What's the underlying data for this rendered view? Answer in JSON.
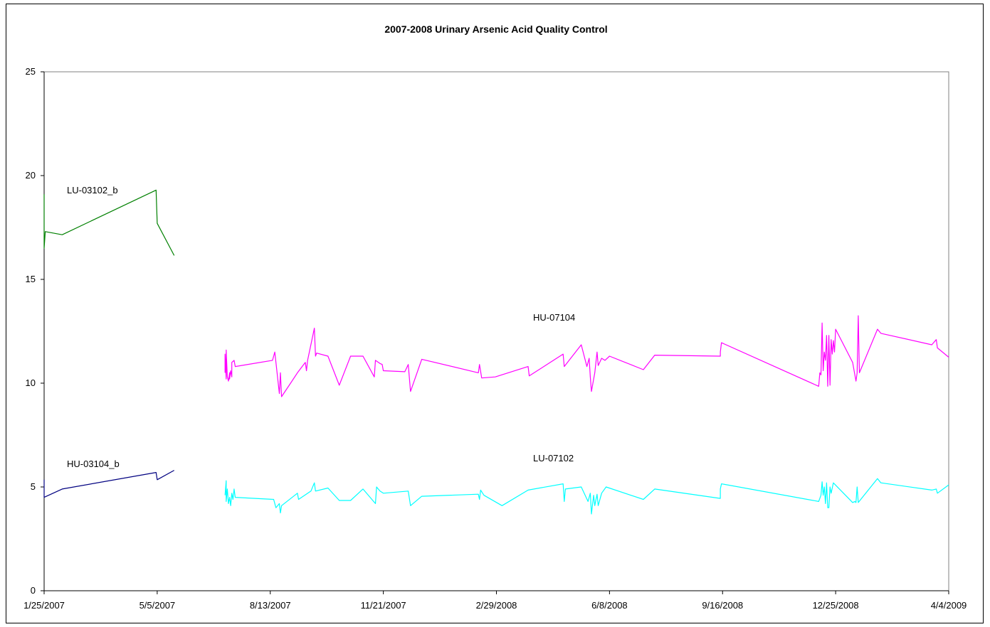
{
  "chart_data": {
    "type": "line",
    "title": "2007-2008 Urinary Arsenic Acid Quality Control",
    "xlabel": "",
    "ylabel": "",
    "ylim": [
      0,
      25
    ],
    "y_ticks": [
      "0",
      "5",
      "10",
      "15",
      "20",
      "25"
    ],
    "x_axis_type": "date",
    "xlim": [
      "2007-01-25",
      "2009-04-04"
    ],
    "x_tick_labels": [
      {
        "date": "2007-01-25",
        "label": "1/25/2007"
      },
      {
        "date": "2007-05-05",
        "label": "5/5/2007"
      },
      {
        "date": "2007-08-13",
        "label": "8/13/2007"
      },
      {
        "date": "2007-11-21",
        "label": "11/21/2007"
      },
      {
        "date": "2008-02-29",
        "label": "2/29/2008"
      },
      {
        "date": "2008-06-08",
        "label": "6/8/2008"
      },
      {
        "date": "2008-09-16",
        "label": "9/16/2008"
      },
      {
        "date": "2008-12-25",
        "label": "12/25/2008"
      },
      {
        "date": "2009-04-04",
        "label": "4/4/2009"
      }
    ],
    "grid": false,
    "legend": "none",
    "annotations": [
      {
        "text": "LU-03102_b",
        "series": 0
      },
      {
        "text": "HU-03104_b",
        "series": 1
      },
      {
        "text": "HU-07104",
        "series": 2
      },
      {
        "text": "LU-07102",
        "series": 3
      }
    ],
    "series": [
      {
        "color": "#008000",
        "points": [
          [
            "2007-01-25",
            19.1
          ],
          [
            "2007-01-25",
            16.5
          ],
          [
            "2007-01-26",
            17.3
          ],
          [
            "2007-02-10",
            17.15
          ],
          [
            "2007-05-04",
            19.3
          ],
          [
            "2007-05-05",
            17.7
          ],
          [
            "2007-05-20",
            16.15
          ]
        ]
      },
      {
        "color": "#000080",
        "points": [
          [
            "2007-01-25",
            5.35
          ],
          [
            "2007-01-25",
            4.5
          ],
          [
            "2007-02-10",
            4.9
          ],
          [
            "2007-05-04",
            5.7
          ],
          [
            "2007-05-05",
            5.35
          ],
          [
            "2007-05-20",
            5.8
          ]
        ]
      },
      {
        "color": "#ff00ff",
        "points": [
          [
            "2007-07-04",
            10.5
          ],
          [
            "2007-07-04",
            11.4
          ],
          [
            "2007-07-05",
            10.2
          ],
          [
            "2007-07-05",
            11.6
          ],
          [
            "2007-07-06",
            10.3
          ],
          [
            "2007-07-07",
            10.1
          ],
          [
            "2007-07-08",
            10.5
          ],
          [
            "2007-07-08",
            10.2
          ],
          [
            "2007-07-09",
            10.6
          ],
          [
            "2007-07-10",
            10.3
          ],
          [
            "2007-07-10",
            11.0
          ],
          [
            "2007-07-12",
            11.1
          ],
          [
            "2007-07-13",
            10.8
          ],
          [
            "2007-08-15",
            11.1
          ],
          [
            "2007-08-17",
            11.5
          ],
          [
            "2007-08-21",
            9.5
          ],
          [
            "2007-08-22",
            10.5
          ],
          [
            "2007-08-23",
            9.35
          ],
          [
            "2007-08-31",
            10.0
          ],
          [
            "2007-09-06",
            10.5
          ],
          [
            "2007-09-13",
            11.0
          ],
          [
            "2007-09-14",
            10.6
          ],
          [
            "2007-09-15",
            11.1
          ],
          [
            "2007-09-21",
            12.65
          ],
          [
            "2007-09-22",
            11.3
          ],
          [
            "2007-09-23",
            11.45
          ],
          [
            "2007-10-03",
            11.3
          ],
          [
            "2007-10-13",
            9.9
          ],
          [
            "2007-10-23",
            11.3
          ],
          [
            "2007-11-03",
            11.3
          ],
          [
            "2007-11-13",
            10.3
          ],
          [
            "2007-11-14",
            11.1
          ],
          [
            "2007-11-18",
            10.95
          ],
          [
            "2007-11-20",
            10.9
          ],
          [
            "2007-11-21",
            10.6
          ],
          [
            "2007-12-10",
            10.55
          ],
          [
            "2007-12-13",
            10.9
          ],
          [
            "2007-12-15",
            9.6
          ],
          [
            "2007-12-25",
            11.15
          ],
          [
            "2008-02-13",
            10.5
          ],
          [
            "2008-02-14",
            10.9
          ],
          [
            "2008-02-16",
            10.25
          ],
          [
            "2008-02-28",
            10.3
          ],
          [
            "2008-03-28",
            10.8
          ],
          [
            "2008-03-29",
            10.35
          ],
          [
            "2008-04-28",
            11.4
          ],
          [
            "2008-04-29",
            10.8
          ],
          [
            "2008-05-14",
            11.85
          ],
          [
            "2008-05-19",
            10.8
          ],
          [
            "2008-05-21",
            11.2
          ],
          [
            "2008-05-22",
            10.3
          ],
          [
            "2008-05-23",
            9.6
          ],
          [
            "2008-05-26",
            10.5
          ],
          [
            "2008-05-28",
            11.5
          ],
          [
            "2008-05-29",
            10.85
          ],
          [
            "2008-06-01",
            11.2
          ],
          [
            "2008-06-04",
            11.1
          ],
          [
            "2008-06-08",
            11.3
          ],
          [
            "2008-07-08",
            10.65
          ],
          [
            "2008-07-18",
            11.35
          ],
          [
            "2008-09-14",
            11.3
          ],
          [
            "2008-09-14",
            11.5
          ],
          [
            "2008-09-15",
            11.95
          ],
          [
            "2008-12-10",
            9.85
          ],
          [
            "2008-12-11",
            10.5
          ],
          [
            "2008-12-12",
            10.4
          ],
          [
            "2008-12-13",
            12.9
          ],
          [
            "2008-12-14",
            10.6
          ],
          [
            "2008-12-15",
            11.5
          ],
          [
            "2008-12-16",
            11.1
          ],
          [
            "2008-12-17",
            12.3
          ],
          [
            "2008-12-18",
            9.85
          ],
          [
            "2008-12-19",
            12.3
          ],
          [
            "2008-12-20",
            9.9
          ],
          [
            "2008-12-21",
            12.1
          ],
          [
            "2008-12-22",
            11.4
          ],
          [
            "2008-12-23",
            12.05
          ],
          [
            "2008-12-24",
            11.5
          ],
          [
            "2008-12-25",
            12.6
          ],
          [
            "2009-01-09",
            11.0
          ],
          [
            "2009-01-11",
            10.4
          ],
          [
            "2009-01-12",
            10.1
          ],
          [
            "2009-01-13",
            10.5
          ],
          [
            "2009-01-14",
            13.25
          ],
          [
            "2009-01-15",
            10.5
          ],
          [
            "2009-01-31",
            12.6
          ],
          [
            "2009-02-03",
            12.4
          ],
          [
            "2009-03-20",
            11.85
          ],
          [
            "2009-03-24",
            12.1
          ],
          [
            "2009-03-25",
            11.7
          ],
          [
            "2009-04-04",
            11.25
          ]
        ]
      },
      {
        "color": "#00ffff",
        "points": [
          [
            "2007-07-04",
            4.6
          ],
          [
            "2007-07-05",
            5.3
          ],
          [
            "2007-07-05",
            4.3
          ],
          [
            "2007-07-06",
            4.9
          ],
          [
            "2007-07-07",
            4.2
          ],
          [
            "2007-07-08",
            4.5
          ],
          [
            "2007-07-09",
            4.1
          ],
          [
            "2007-07-10",
            4.7
          ],
          [
            "2007-07-11",
            4.4
          ],
          [
            "2007-07-12",
            4.9
          ],
          [
            "2007-07-13",
            4.5
          ],
          [
            "2007-08-16",
            4.4
          ],
          [
            "2007-08-18",
            4.0
          ],
          [
            "2007-08-21",
            4.2
          ],
          [
            "2007-08-22",
            3.75
          ],
          [
            "2007-08-23",
            4.1
          ],
          [
            "2007-09-06",
            4.7
          ],
          [
            "2007-09-07",
            4.4
          ],
          [
            "2007-09-18",
            4.8
          ],
          [
            "2007-09-21",
            5.2
          ],
          [
            "2007-09-22",
            4.8
          ],
          [
            "2007-10-03",
            4.95
          ],
          [
            "2007-10-13",
            4.35
          ],
          [
            "2007-10-23",
            4.35
          ],
          [
            "2007-11-03",
            4.9
          ],
          [
            "2007-11-14",
            4.2
          ],
          [
            "2007-11-15",
            5.0
          ],
          [
            "2007-11-18",
            4.8
          ],
          [
            "2007-11-21",
            4.7
          ],
          [
            "2007-12-13",
            4.8
          ],
          [
            "2007-12-15",
            4.1
          ],
          [
            "2007-12-25",
            4.55
          ],
          [
            "2008-02-13",
            4.65
          ],
          [
            "2008-02-14",
            4.4
          ],
          [
            "2008-02-15",
            4.85
          ],
          [
            "2008-02-18",
            4.6
          ],
          [
            "2008-03-05",
            4.1
          ],
          [
            "2008-03-28",
            4.85
          ],
          [
            "2008-04-28",
            5.15
          ],
          [
            "2008-04-29",
            4.3
          ],
          [
            "2008-04-30",
            4.9
          ],
          [
            "2008-05-14",
            5.0
          ],
          [
            "2008-05-20",
            4.3
          ],
          [
            "2008-05-22",
            4.7
          ],
          [
            "2008-05-23",
            3.7
          ],
          [
            "2008-05-25",
            4.6
          ],
          [
            "2008-05-26",
            4.1
          ],
          [
            "2008-05-28",
            4.65
          ],
          [
            "2008-05-29",
            4.1
          ],
          [
            "2008-06-01",
            4.7
          ],
          [
            "2008-06-05",
            5.0
          ],
          [
            "2008-07-08",
            4.4
          ],
          [
            "2008-07-18",
            4.9
          ],
          [
            "2008-09-14",
            4.45
          ],
          [
            "2008-09-14",
            4.9
          ],
          [
            "2008-09-15",
            5.15
          ],
          [
            "2008-12-10",
            4.3
          ],
          [
            "2008-12-12",
            4.6
          ],
          [
            "2008-12-13",
            5.25
          ],
          [
            "2008-12-14",
            4.6
          ],
          [
            "2008-12-15",
            5.0
          ],
          [
            "2008-12-16",
            4.2
          ],
          [
            "2008-12-17",
            5.2
          ],
          [
            "2008-12-18",
            4.0
          ],
          [
            "2008-12-19",
            4.0
          ],
          [
            "2008-12-20",
            5.0
          ],
          [
            "2008-12-21",
            4.7
          ],
          [
            "2008-12-23",
            5.2
          ],
          [
            "2009-01-09",
            4.25
          ],
          [
            "2009-01-11",
            4.3
          ],
          [
            "2009-01-12",
            4.25
          ],
          [
            "2009-01-13",
            5.0
          ],
          [
            "2009-01-14",
            4.25
          ],
          [
            "2009-01-31",
            5.4
          ],
          [
            "2009-02-03",
            5.2
          ],
          [
            "2009-03-20",
            4.85
          ],
          [
            "2009-03-24",
            4.9
          ],
          [
            "2009-03-25",
            4.7
          ],
          [
            "2009-04-04",
            5.1
          ]
        ]
      }
    ]
  }
}
